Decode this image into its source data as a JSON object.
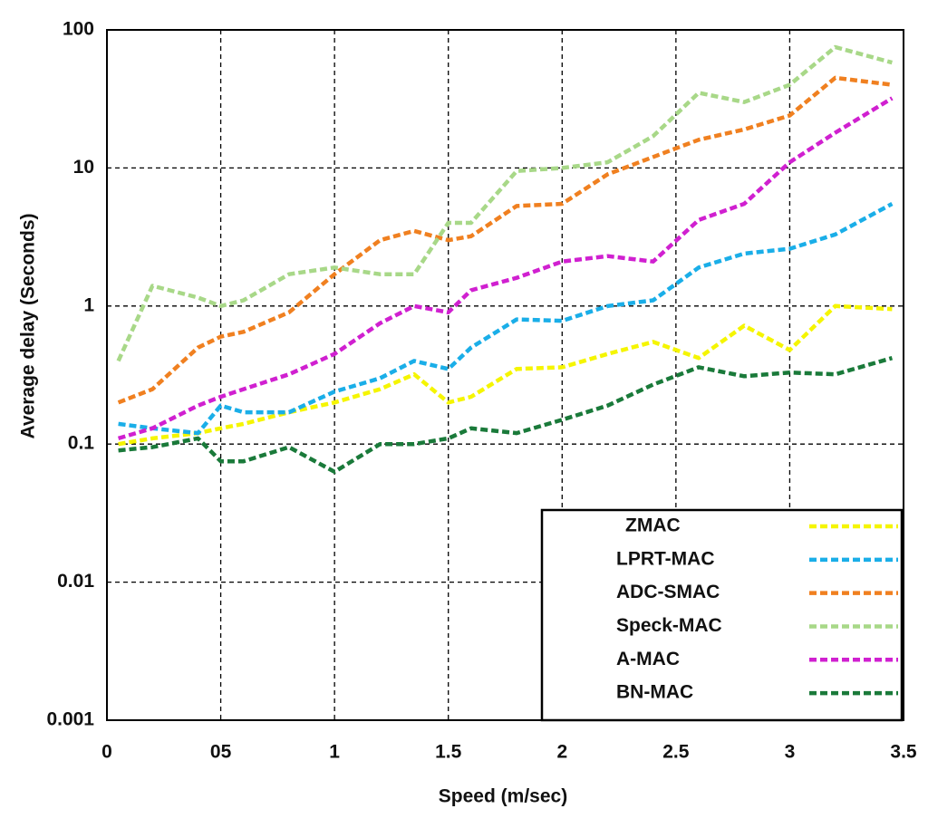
{
  "chart_data": {
    "type": "line",
    "x_label": "Speed (m/sec)",
    "y_label": "Average delay (Seconds)",
    "x": [
      0.05,
      0.2,
      0.4,
      0.5,
      0.6,
      0.8,
      1.0,
      1.2,
      1.35,
      1.5,
      1.6,
      1.8,
      2.0,
      2.2,
      2.4,
      2.6,
      2.8,
      3.0,
      3.2,
      3.45
    ],
    "series": [
      {
        "name": "ZMAC",
        "color": "#f5f500",
        "values": [
          0.1,
          0.11,
          0.12,
          0.13,
          0.14,
          0.17,
          0.2,
          0.25,
          0.32,
          0.2,
          0.22,
          0.35,
          0.36,
          0.45,
          0.55,
          0.42,
          0.72,
          0.48,
          1.0,
          0.95
        ]
      },
      {
        "name": "LPRT-MAC",
        "color": "#1aaee8",
        "values": [
          0.14,
          0.13,
          0.12,
          0.19,
          0.17,
          0.17,
          0.24,
          0.3,
          0.4,
          0.35,
          0.5,
          0.8,
          0.78,
          1.0,
          1.1,
          1.9,
          2.4,
          2.6,
          3.3,
          5.5
        ]
      },
      {
        "name": "ADC-SMAC",
        "color": "#f08020",
        "values": [
          0.2,
          0.25,
          0.5,
          0.6,
          0.65,
          0.9,
          1.7,
          3.0,
          3.5,
          3.0,
          3.2,
          5.3,
          5.5,
          9,
          12,
          16,
          19,
          24,
          45,
          40
        ]
      },
      {
        "name": "Speck-MAC",
        "color": "#a8d888",
        "values": [
          0.4,
          1.4,
          1.15,
          1.0,
          1.1,
          1.7,
          1.9,
          1.7,
          1.7,
          4.0,
          4.0,
          9.5,
          10,
          11,
          17,
          35,
          30,
          40,
          75,
          58
        ]
      },
      {
        "name": "A-MAC",
        "color": "#d020d0",
        "values": [
          0.11,
          0.13,
          0.19,
          0.22,
          0.25,
          0.32,
          0.45,
          0.75,
          1.0,
          0.9,
          1.3,
          1.6,
          2.1,
          2.3,
          2.1,
          4.2,
          5.5,
          11,
          18,
          32
        ]
      },
      {
        "name": "BN-MAC",
        "color": "#1a7a3a",
        "values": [
          0.09,
          0.095,
          0.11,
          0.075,
          0.075,
          0.095,
          0.063,
          0.1,
          0.1,
          0.11,
          0.13,
          0.12,
          0.15,
          0.19,
          0.27,
          0.36,
          0.31,
          0.33,
          0.32,
          0.42
        ]
      }
    ],
    "xlim": [
      0,
      3.5
    ],
    "xticks": [
      0,
      {
        "value": 0.5,
        "label": "05"
      },
      1,
      1.5,
      2,
      2.5,
      3,
      3.5
    ],
    "ylim": [
      0.001,
      100
    ],
    "yticks": [
      0.001,
      0.01,
      0.1,
      1,
      10,
      100
    ],
    "y_log": true,
    "grid": true,
    "legend": "lower right"
  }
}
